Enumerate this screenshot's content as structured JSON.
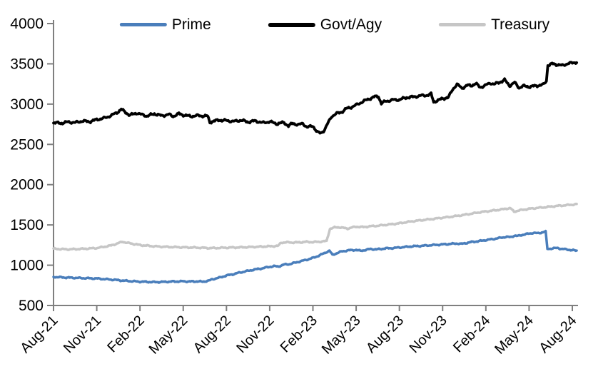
{
  "chart_data": {
    "type": "line",
    "title": "",
    "legend": {
      "position": "top"
    },
    "axis_color": "#7f7f7f",
    "x_axis": {
      "unit": "months",
      "tick_labels": [
        "Aug-21",
        "Nov-21",
        "Feb-22",
        "May-22",
        "Aug-22",
        "Nov-22",
        "Feb-23",
        "May-23",
        "Aug-23",
        "Nov-23",
        "Feb-24",
        "May-24",
        "Aug-24"
      ],
      "tick_months": [
        0,
        3,
        6,
        9,
        12,
        15,
        18,
        21,
        24,
        27,
        30,
        33,
        36
      ],
      "range_months": [
        0,
        36.3
      ]
    },
    "y_axis": {
      "min": 500,
      "max": 4000,
      "tick_step": 500,
      "tick_labels": [
        "500",
        "1000",
        "1500",
        "2000",
        "2500",
        "3000",
        "3500",
        "4000"
      ],
      "grid": false
    },
    "series": [
      {
        "name": "Prime",
        "color": "#4a7ebb",
        "points": [
          [
            0,
            855
          ],
          [
            0.5,
            850
          ],
          [
            1,
            846
          ],
          [
            2,
            840
          ],
          [
            3,
            835
          ],
          [
            4,
            822
          ],
          [
            5,
            806
          ],
          [
            6,
            796
          ],
          [
            7,
            790
          ],
          [
            7.5,
            792
          ],
          [
            8,
            796
          ],
          [
            9,
            800
          ],
          [
            9.5,
            797
          ],
          [
            10,
            800
          ],
          [
            10.3,
            795
          ],
          [
            10.8,
            808
          ],
          [
            11,
            825
          ],
          [
            11.5,
            845
          ],
          [
            12,
            872
          ],
          [
            12.5,
            890
          ],
          [
            13,
            912
          ],
          [
            13.5,
            930
          ],
          [
            14,
            948
          ],
          [
            14.5,
            962
          ],
          [
            15,
            980
          ],
          [
            15.3,
            988
          ],
          [
            15.6,
            984
          ],
          [
            16,
            1008
          ],
          [
            16.4,
            1014
          ],
          [
            17,
            1042
          ],
          [
            17.5,
            1065
          ],
          [
            18,
            1090
          ],
          [
            18.4,
            1118
          ],
          [
            18.8,
            1150
          ],
          [
            19,
            1168
          ],
          [
            19.15,
            1180
          ],
          [
            19.35,
            1128
          ],
          [
            19.7,
            1152
          ],
          [
            20,
            1172
          ],
          [
            20.5,
            1185
          ],
          [
            21,
            1190
          ],
          [
            21.3,
            1178
          ],
          [
            21.6,
            1188
          ],
          [
            22,
            1202
          ],
          [
            22.4,
            1196
          ],
          [
            23,
            1208
          ],
          [
            23.5,
            1212
          ],
          [
            24,
            1220
          ],
          [
            24.5,
            1228
          ],
          [
            25,
            1236
          ],
          [
            25.5,
            1240
          ],
          [
            26,
            1246
          ],
          [
            26.5,
            1252
          ],
          [
            27,
            1258
          ],
          [
            27.5,
            1264
          ],
          [
            28,
            1270
          ],
          [
            28.3,
            1264
          ],
          [
            29,
            1288
          ],
          [
            29.5,
            1298
          ],
          [
            30,
            1312
          ],
          [
            30.5,
            1325
          ],
          [
            31,
            1340
          ],
          [
            31.4,
            1352
          ],
          [
            31.7,
            1348
          ],
          [
            32,
            1368
          ],
          [
            32.2,
            1362
          ],
          [
            32.6,
            1380
          ],
          [
            33,
            1392
          ],
          [
            33.3,
            1402
          ],
          [
            33.6,
            1396
          ],
          [
            34,
            1412
          ],
          [
            34.15,
            1418
          ],
          [
            34.27,
            1202
          ],
          [
            34.6,
            1208
          ],
          [
            35,
            1214
          ],
          [
            35.2,
            1204
          ],
          [
            35.6,
            1196
          ],
          [
            36,
            1186
          ],
          [
            36.3,
            1180
          ]
        ]
      },
      {
        "name": "Govt/Agy",
        "color": "#000000",
        "points": [
          [
            0,
            2770
          ],
          [
            0.5,
            2762
          ],
          [
            1,
            2778
          ],
          [
            1.5,
            2770
          ],
          [
            2,
            2790
          ],
          [
            2.5,
            2782
          ],
          [
            3,
            2808
          ],
          [
            3.5,
            2825
          ],
          [
            4,
            2858
          ],
          [
            4.4,
            2895
          ],
          [
            4.7,
            2935
          ],
          [
            5,
            2898
          ],
          [
            5.3,
            2862
          ],
          [
            5.8,
            2890
          ],
          [
            6,
            2875
          ],
          [
            6.5,
            2852
          ],
          [
            7,
            2880
          ],
          [
            7.5,
            2855
          ],
          [
            8,
            2872
          ],
          [
            8.3,
            2848
          ],
          [
            8.7,
            2880
          ],
          [
            9,
            2865
          ],
          [
            9.5,
            2848
          ],
          [
            10,
            2858
          ],
          [
            10.7,
            2850
          ],
          [
            10.85,
            2772
          ],
          [
            11,
            2785
          ],
          [
            11.5,
            2802
          ],
          [
            12,
            2795
          ],
          [
            12.5,
            2785
          ],
          [
            13,
            2800
          ],
          [
            13.5,
            2778
          ],
          [
            14,
            2792
          ],
          [
            14.5,
            2768
          ],
          [
            15,
            2782
          ],
          [
            15.5,
            2755
          ],
          [
            16,
            2772
          ],
          [
            16.3,
            2728
          ],
          [
            16.6,
            2762
          ],
          [
            17,
            2742
          ],
          [
            17.3,
            2760
          ],
          [
            17.6,
            2712
          ],
          [
            18,
            2730
          ],
          [
            18.3,
            2652
          ],
          [
            18.55,
            2638
          ],
          [
            18.8,
            2680
          ],
          [
            19,
            2748
          ],
          [
            19.3,
            2848
          ],
          [
            19.6,
            2880
          ],
          [
            20,
            2902
          ],
          [
            20.3,
            2942
          ],
          [
            20.6,
            2958
          ],
          [
            21,
            2988
          ],
          [
            21.5,
            3035
          ],
          [
            22,
            3072
          ],
          [
            22.3,
            3092
          ],
          [
            22.55,
            3095
          ],
          [
            22.75,
            3008
          ],
          [
            23,
            3032
          ],
          [
            23.5,
            3052
          ],
          [
            24,
            3055
          ],
          [
            24.5,
            3082
          ],
          [
            25,
            3090
          ],
          [
            25.5,
            3105
          ],
          [
            26,
            3112
          ],
          [
            26.2,
            3125
          ],
          [
            26.38,
            3028
          ],
          [
            26.8,
            3055
          ],
          [
            27,
            3070
          ],
          [
            27.4,
            3082
          ],
          [
            27.7,
            3185
          ],
          [
            28,
            3245
          ],
          [
            28.35,
            3198
          ],
          [
            28.7,
            3232
          ],
          [
            29,
            3230
          ],
          [
            29.3,
            3256
          ],
          [
            29.6,
            3208
          ],
          [
            30,
            3235
          ],
          [
            30.3,
            3262
          ],
          [
            30.6,
            3248
          ],
          [
            31,
            3275
          ],
          [
            31.3,
            3300
          ],
          [
            31.65,
            3228
          ],
          [
            32,
            3268
          ],
          [
            32.3,
            3202
          ],
          [
            32.6,
            3225
          ],
          [
            33,
            3215
          ],
          [
            33.5,
            3228
          ],
          [
            34,
            3242
          ],
          [
            34.2,
            3288
          ],
          [
            34.3,
            3478
          ],
          [
            34.6,
            3500
          ],
          [
            35,
            3490
          ],
          [
            35.3,
            3478
          ],
          [
            35.7,
            3505
          ],
          [
            36,
            3510
          ],
          [
            36.3,
            3522
          ]
        ]
      },
      {
        "name": "Treasury",
        "color": "#c6c6c6",
        "points": [
          [
            0,
            1205
          ],
          [
            0.5,
            1200
          ],
          [
            1,
            1197
          ],
          [
            1.5,
            1200
          ],
          [
            2,
            1203
          ],
          [
            2.5,
            1208
          ],
          [
            3,
            1213
          ],
          [
            3.5,
            1228
          ],
          [
            4,
            1245
          ],
          [
            4.4,
            1268
          ],
          [
            4.8,
            1292
          ],
          [
            5,
            1282
          ],
          [
            5.3,
            1272
          ],
          [
            6,
            1250
          ],
          [
            6.5,
            1242
          ],
          [
            7,
            1235
          ],
          [
            7.5,
            1230
          ],
          [
            8,
            1227
          ],
          [
            9,
            1222
          ],
          [
            10,
            1218
          ],
          [
            10.5,
            1215
          ],
          [
            11,
            1212
          ],
          [
            11.5,
            1215
          ],
          [
            12,
            1218
          ],
          [
            12.5,
            1220
          ],
          [
            13,
            1222
          ],
          [
            13.5,
            1225
          ],
          [
            14,
            1228
          ],
          [
            14.5,
            1231
          ],
          [
            15,
            1235
          ],
          [
            15.6,
            1240
          ],
          [
            15.78,
            1280
          ],
          [
            16.2,
            1284
          ],
          [
            16.6,
            1282
          ],
          [
            17,
            1283
          ],
          [
            17.5,
            1290
          ],
          [
            18,
            1287
          ],
          [
            18.5,
            1292
          ],
          [
            18.95,
            1300
          ],
          [
            19.18,
            1452
          ],
          [
            19.5,
            1468
          ],
          [
            19.8,
            1472
          ],
          [
            20,
            1466
          ],
          [
            20.4,
            1455
          ],
          [
            20.8,
            1472
          ],
          [
            21,
            1478
          ],
          [
            21.5,
            1473
          ],
          [
            22,
            1484
          ],
          [
            22.5,
            1490
          ],
          [
            23,
            1500
          ],
          [
            23.5,
            1510
          ],
          [
            24,
            1520
          ],
          [
            24.5,
            1535
          ],
          [
            25,
            1548
          ],
          [
            25.5,
            1558
          ],
          [
            26,
            1568
          ],
          [
            26.5,
            1578
          ],
          [
            27,
            1590
          ],
          [
            27.5,
            1600
          ],
          [
            28,
            1612
          ],
          [
            28.5,
            1625
          ],
          [
            29,
            1640
          ],
          [
            29.5,
            1655
          ],
          [
            30,
            1668
          ],
          [
            30.5,
            1678
          ],
          [
            31,
            1690
          ],
          [
            31.4,
            1702
          ],
          [
            31.7,
            1708
          ],
          [
            31.95,
            1665
          ],
          [
            32.3,
            1680
          ],
          [
            32.7,
            1692
          ],
          [
            33,
            1700
          ],
          [
            33.5,
            1710
          ],
          [
            34,
            1718
          ],
          [
            34.5,
            1728
          ],
          [
            35,
            1737
          ],
          [
            35.5,
            1744
          ],
          [
            36,
            1752
          ],
          [
            36.3,
            1758
          ]
        ]
      }
    ]
  }
}
